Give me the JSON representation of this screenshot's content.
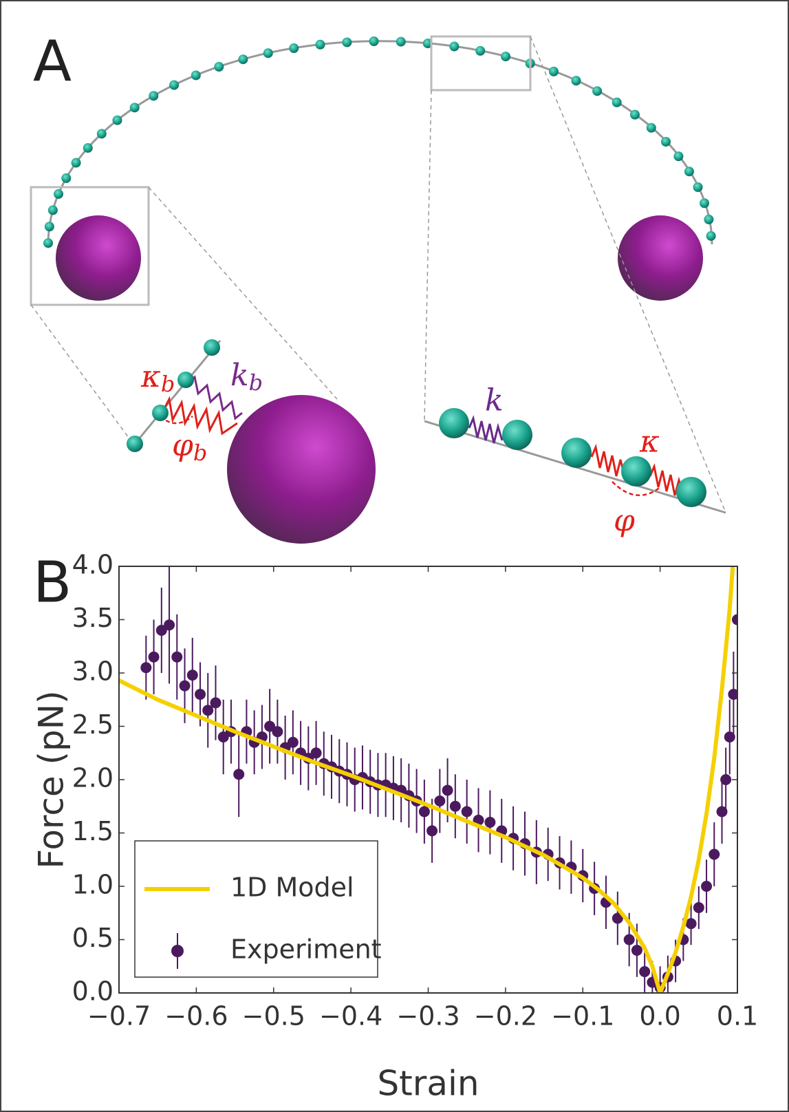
{
  "panel_a": {
    "label": "A",
    "kappa_b": {
      "base": "κ",
      "sub": "b"
    },
    "k_b": {
      "base": "k",
      "sub": "b"
    },
    "phi_b": {
      "base": "φ",
      "sub": "b"
    },
    "k": "k",
    "kappa": "κ",
    "phi": "φ"
  },
  "chart_data": {
    "type": "line",
    "panel_label": "B",
    "xlabel": "Strain",
    "ylabel": "Force (pN)",
    "xlim": [
      -0.7,
      0.1
    ],
    "ylim": [
      0,
      4
    ],
    "xticks": [
      {
        "value": -0.7,
        "label": "−0.7"
      },
      {
        "value": -0.6,
        "label": "−0.6"
      },
      {
        "value": -0.5,
        "label": "−0.5"
      },
      {
        "value": -0.4,
        "label": "−0.4"
      },
      {
        "value": -0.3,
        "label": "−0.3"
      },
      {
        "value": -0.2,
        "label": "−0.2"
      },
      {
        "value": -0.1,
        "label": "−0.1"
      },
      {
        "value": 0,
        "label": "0.0"
      },
      0.1
    ],
    "yticks": [
      {
        "value": 0,
        "label": "0.0"
      },
      0.5,
      {
        "value": 1,
        "label": "1.0"
      },
      1.5,
      {
        "value": 2,
        "label": "2.0"
      },
      2.5,
      {
        "value": 3,
        "label": "3.0"
      },
      3.5,
      {
        "value": 4,
        "label": "4.0"
      }
    ],
    "legend": "lower left",
    "series": [
      {
        "name": "1D Model",
        "type": "line",
        "color": "#f5d000",
        "x": [
          -0.7,
          -0.65,
          -0.6,
          -0.55,
          -0.5,
          -0.45,
          -0.4,
          -0.35,
          -0.3,
          -0.25,
          -0.2,
          -0.15,
          -0.1,
          -0.08,
          -0.06,
          -0.04,
          -0.02,
          -0.01,
          0,
          0.01,
          0.02,
          0.03,
          0.04,
          0.05,
          0.06,
          0.07,
          0.08,
          0.09,
          0.094
        ],
        "values": [
          2.93,
          2.75,
          2.6,
          2.45,
          2.31,
          2.17,
          2.04,
          1.9,
          1.76,
          1.61,
          1.46,
          1.29,
          1.08,
          0.97,
          0.84,
          0.66,
          0.42,
          0.25,
          0,
          0.18,
          0.38,
          0.62,
          0.9,
          1.25,
          1.68,
          2.2,
          2.85,
          3.6,
          4.0
        ]
      },
      {
        "name": "Experiment",
        "type": "errorbar",
        "color": "#4b1a5e",
        "x": [
          -0.665,
          -0.655,
          -0.645,
          -0.635,
          -0.625,
          -0.615,
          -0.605,
          -0.595,
          -0.585,
          -0.575,
          -0.565,
          -0.555,
          -0.545,
          -0.535,
          -0.525,
          -0.515,
          -0.505,
          -0.495,
          -0.485,
          -0.475,
          -0.465,
          -0.455,
          -0.445,
          -0.435,
          -0.425,
          -0.415,
          -0.405,
          -0.395,
          -0.385,
          -0.375,
          -0.365,
          -0.355,
          -0.345,
          -0.335,
          -0.325,
          -0.315,
          -0.305,
          -0.295,
          -0.285,
          -0.275,
          -0.265,
          -0.25,
          -0.235,
          -0.22,
          -0.205,
          -0.19,
          -0.175,
          -0.16,
          -0.145,
          -0.13,
          -0.115,
          -0.1,
          -0.085,
          -0.07,
          -0.055,
          -0.04,
          -0.03,
          -0.02,
          -0.01,
          0,
          0.01,
          0.02,
          0.03,
          0.04,
          0.05,
          0.06,
          0.07,
          0.08,
          0.085,
          0.09,
          0.095,
          0.1
        ],
        "values": [
          3.05,
          3.15,
          3.4,
          3.45,
          3.15,
          2.88,
          2.98,
          2.8,
          2.65,
          2.72,
          2.4,
          2.45,
          2.05,
          2.45,
          2.35,
          2.4,
          2.5,
          2.45,
          2.3,
          2.35,
          2.25,
          2.2,
          2.25,
          2.15,
          2.12,
          2.08,
          2.05,
          2.0,
          2.02,
          1.98,
          1.95,
          1.95,
          1.92,
          1.9,
          1.85,
          1.8,
          1.7,
          1.52,
          1.8,
          1.9,
          1.75,
          1.7,
          1.62,
          1.6,
          1.52,
          1.45,
          1.4,
          1.32,
          1.3,
          1.22,
          1.18,
          1.1,
          0.98,
          0.85,
          0.7,
          0.5,
          0.4,
          0.2,
          0.1,
          0.05,
          0.15,
          0.3,
          0.5,
          0.65,
          0.8,
          1.0,
          1.3,
          1.7,
          2.0,
          2.4,
          2.8,
          3.5
        ],
        "errors": [
          0.3,
          0.35,
          0.4,
          0.55,
          0.4,
          0.35,
          0.35,
          0.3,
          0.35,
          0.35,
          0.35,
          0.3,
          0.4,
          0.3,
          0.3,
          0.3,
          0.35,
          0.3,
          0.3,
          0.3,
          0.3,
          0.3,
          0.3,
          0.3,
          0.3,
          0.3,
          0.3,
          0.3,
          0.3,
          0.3,
          0.3,
          0.3,
          0.3,
          0.3,
          0.3,
          0.3,
          0.3,
          0.3,
          0.3,
          0.3,
          0.3,
          0.3,
          0.3,
          0.3,
          0.3,
          0.3,
          0.3,
          0.3,
          0.25,
          0.25,
          0.25,
          0.25,
          0.25,
          0.25,
          0.25,
          0.25,
          0.25,
          0.25,
          0.2,
          0.2,
          0.2,
          0.2,
          0.2,
          0.2,
          0.2,
          0.25,
          0.3,
          0.3,
          0.3,
          0.35,
          0.4,
          0.4
        ]
      }
    ]
  }
}
